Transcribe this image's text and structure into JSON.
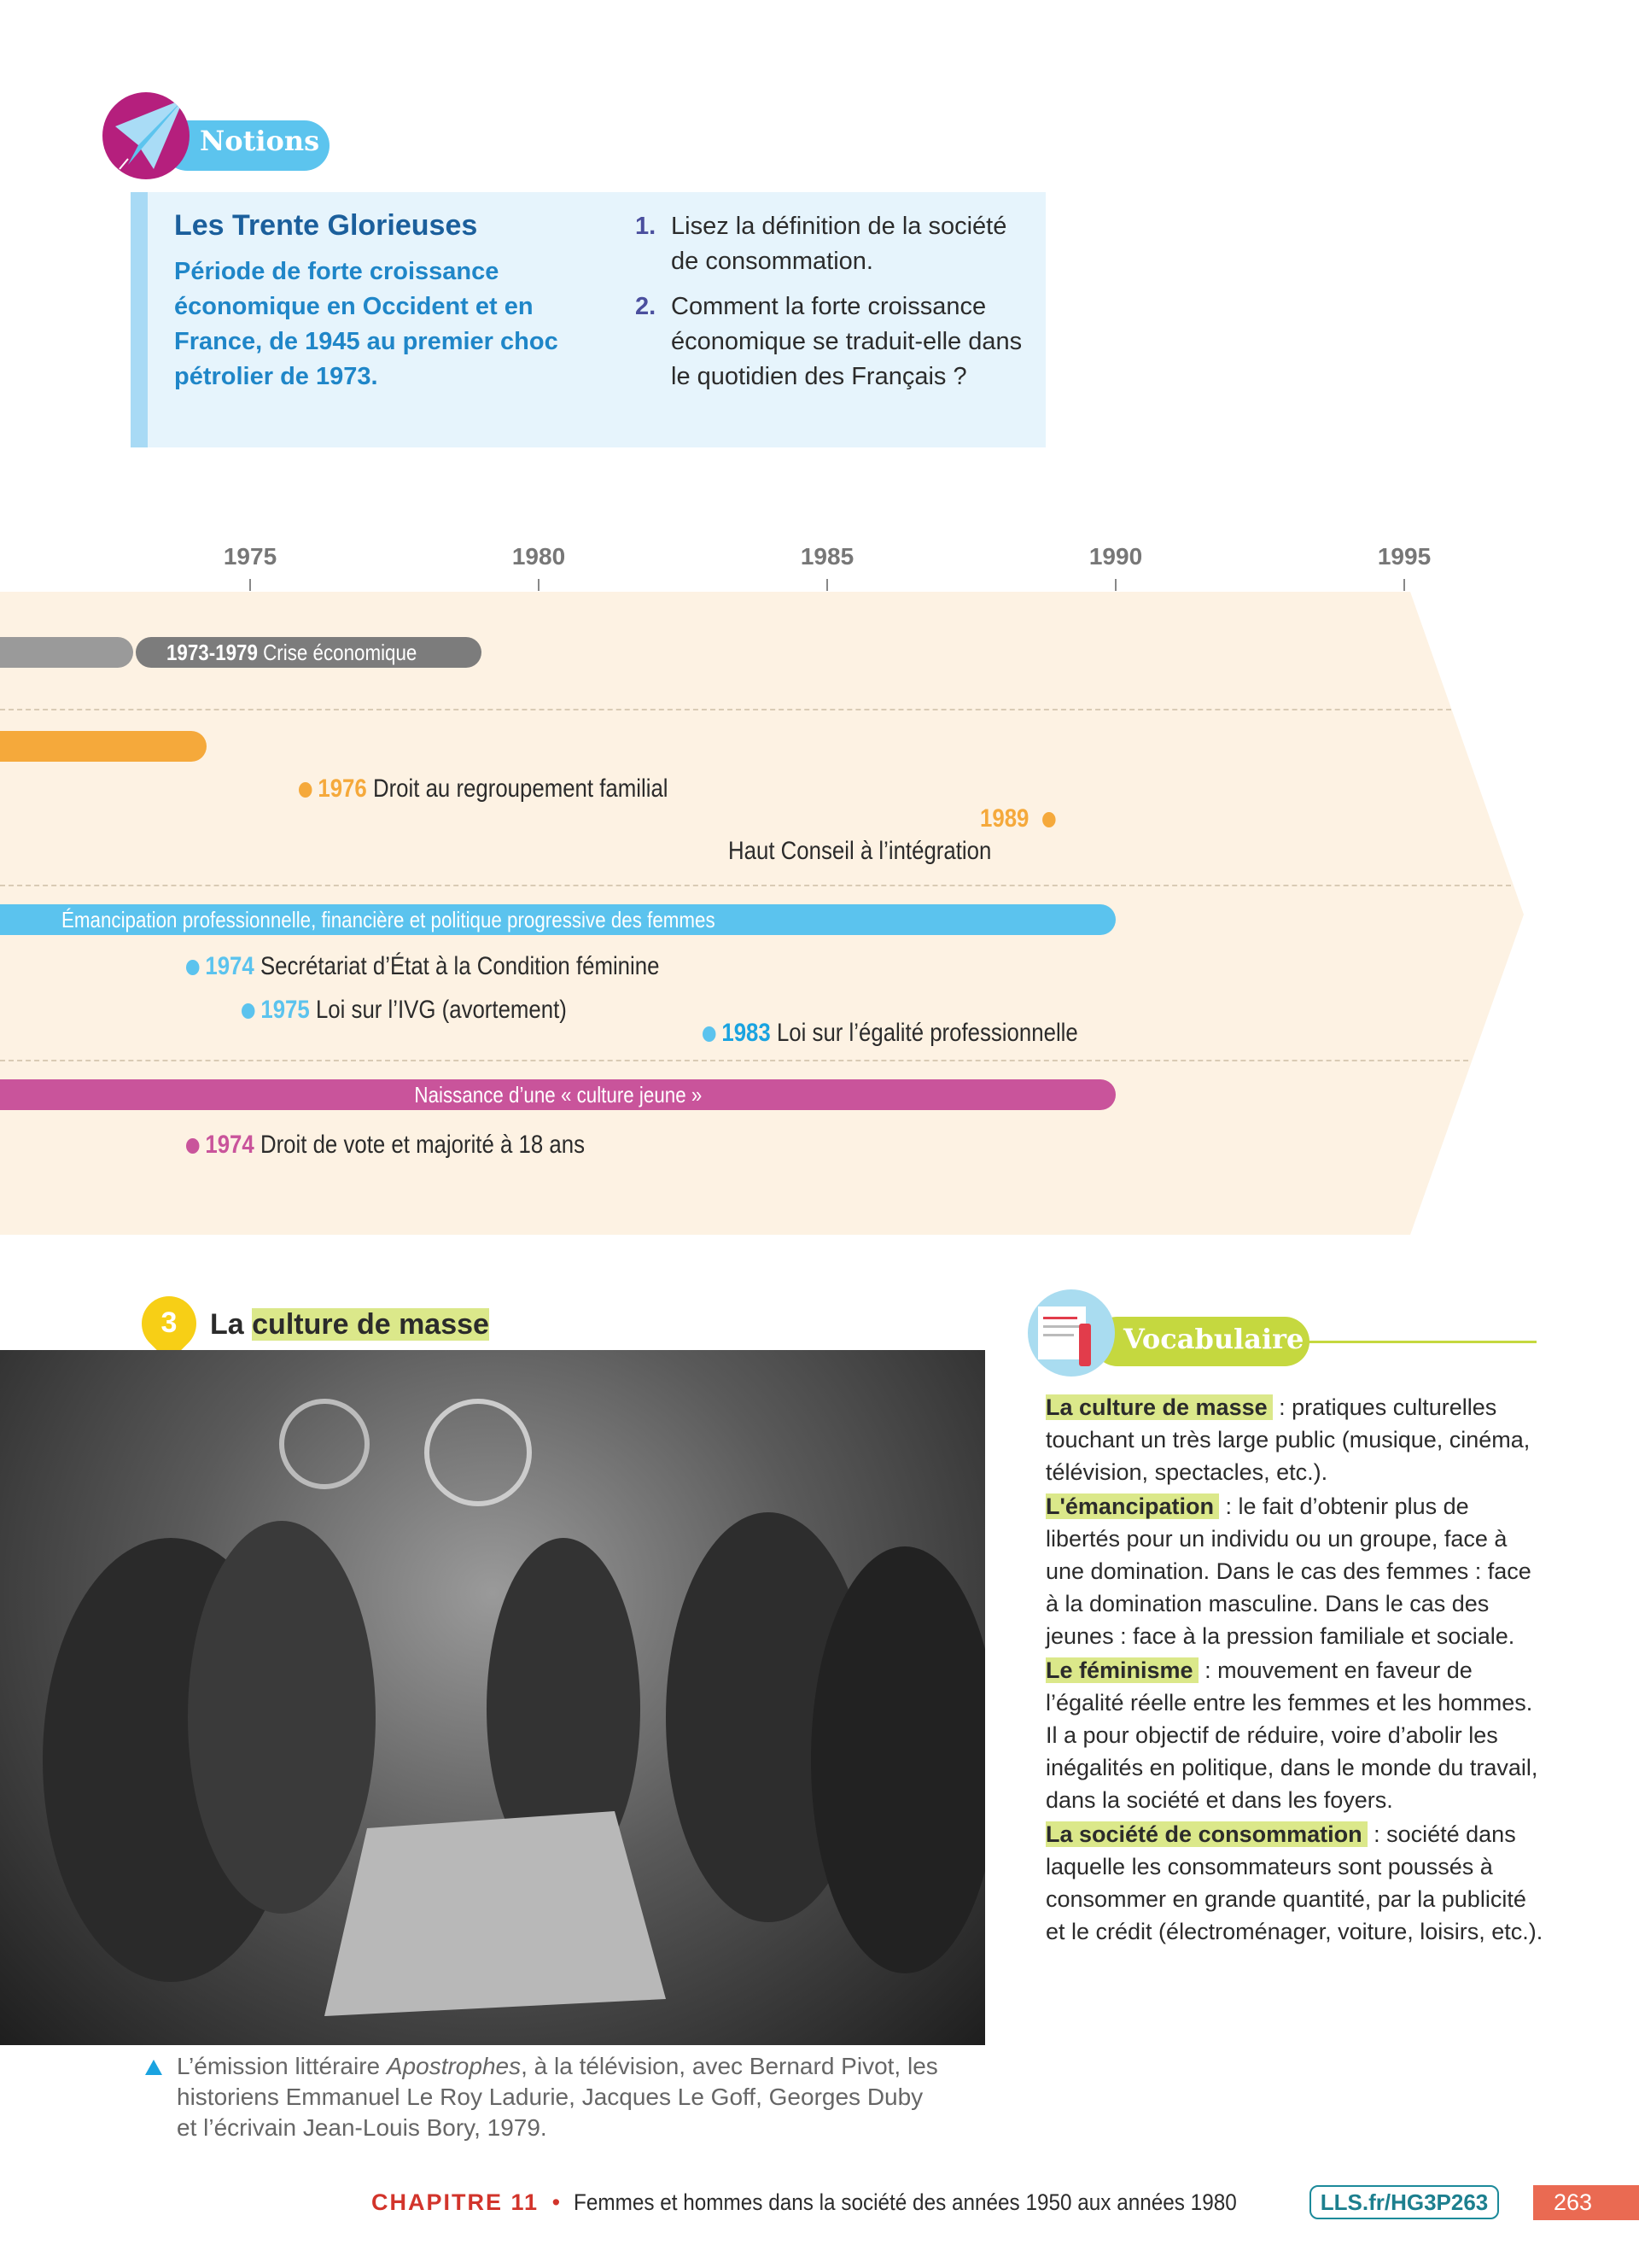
{
  "notions": {
    "badge": "Notions",
    "title": "Les Trente Glorieuses",
    "definition": "Période de forte croissance économique en Occident et en France, de 1945 au premier choc pétrolier de 1973.",
    "questions": [
      {
        "n": "1.",
        "text": "Lisez la définition de la société de consommation."
      },
      {
        "n": "2.",
        "text": "Comment la forte croissance économique se traduit-elle dans le quotidien des Français ?"
      }
    ]
  },
  "timeline": {
    "years": [
      "1975",
      "1980",
      "1985",
      "1990",
      "1995"
    ],
    "bars": {
      "crisis_years": "1973-1979",
      "crisis_label": "Crise économique",
      "women": "Émancipation professionnelle, financière et politique progressive des femmes",
      "youth": "Naissance d’une « culture jeune »"
    },
    "events": [
      {
        "year": "1976",
        "text": "Droit au regroupement familial",
        "color": "#f5a93b"
      },
      {
        "year": "1989",
        "text": "Haut Conseil à l’intégration",
        "color": "#f5a93b"
      },
      {
        "year": "1974",
        "text": "Secrétariat d’État à la Condition féminine",
        "color": "#5bc3ee"
      },
      {
        "year": "1975",
        "text": "Loi sur l’IVG (avortement)",
        "color": "#5bc3ee"
      },
      {
        "year": "1983",
        "text": "Loi sur l’égalité professionnelle",
        "color": "#1aa3e0"
      },
      {
        "year": "1974",
        "text": "Droit de vote et majorité à 18 ans",
        "color": "#c9549b"
      }
    ]
  },
  "doc3": {
    "number": "3",
    "title_prefix": "La",
    "title_highlight": "culture de masse",
    "caption_pre": "L’émission littéraire ",
    "caption_italic": "Apostrophes",
    "caption_post": ", à la télévision, avec Bernard Pivot, les historiens Emmanuel Le Roy Ladurie, Jacques Le Goff, Georges Duby et l’écrivain Jean-Louis Bory, 1979."
  },
  "vocabulaire": {
    "badge": "Vocabulaire",
    "entries": [
      {
        "term": "La culture de masse",
        "def": " : pratiques culturelles touchant un très large public (musique, cinéma, télévision, spectacles, etc.)."
      },
      {
        "term": "L'émancipation",
        "def": " : le fait d’obtenir plus de libertés pour un individu ou un groupe, face à une domination. Dans le cas des femmes : face à la domination masculine. Dans le cas des jeunes : face à la pression familiale et sociale."
      },
      {
        "term": "Le féminisme",
        "def": " : mouvement en faveur de l’égalité réelle entre les femmes et les hommes. Il a pour objectif de réduire, voire d’abolir les inégalités en politique, dans le monde du travail, dans la société et dans les foyers."
      },
      {
        "term": "La société de consommation",
        "def": " : société dans laquelle les consommateurs sont poussés à consommer en grande quantité, par la publicité et le crédit (électroménager, voiture, loisirs, etc.)."
      }
    ]
  },
  "footer": {
    "chapter": "CHAPITRE 11",
    "bullet": "•",
    "title": "Femmes et hommes dans la société des années 1950 aux années 1980",
    "link": "LLS.fr/HG3P263",
    "page": "263"
  },
  "colors": {
    "orange": "#f5a93b",
    "blue": "#5bc3ee",
    "pink": "#c9549b",
    "grey": "#8a8a8a",
    "band": "#fdf2e3",
    "vocab": "#c5d83f"
  }
}
